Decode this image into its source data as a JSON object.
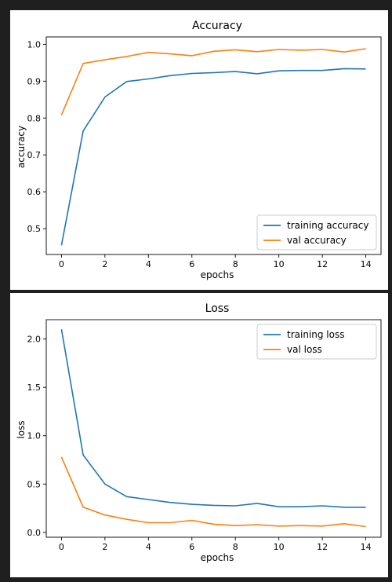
{
  "chart_data": [
    {
      "type": "line",
      "title": "Accuracy",
      "xlabel": "epochs",
      "ylabel": "accuracy",
      "xlim": [
        -0.7,
        14.7
      ],
      "ylim": [
        0.43,
        1.02
      ],
      "xticks": [
        0,
        2,
        4,
        6,
        8,
        10,
        12,
        14
      ],
      "yticks": [
        0.5,
        0.6,
        0.7,
        0.8,
        0.9,
        1.0
      ],
      "ytick_labels": [
        "0.5",
        "0.6",
        "0.7",
        "0.8",
        "0.9",
        "1.0"
      ],
      "legend_placement": "lower-right",
      "grid": false,
      "x": [
        0,
        1,
        2,
        3,
        4,
        5,
        6,
        7,
        8,
        9,
        10,
        11,
        12,
        13,
        14
      ],
      "series": [
        {
          "name": "training accuracy",
          "color": "#1f77b4",
          "values": [
            0.455,
            0.765,
            0.857,
            0.899,
            0.906,
            0.915,
            0.921,
            0.923,
            0.926,
            0.92,
            0.928,
            0.929,
            0.929,
            0.934,
            0.933
          ]
        },
        {
          "name": "val accuracy",
          "color": "#ff7f0e",
          "values": [
            0.808,
            0.948,
            0.958,
            0.967,
            0.978,
            0.974,
            0.969,
            0.981,
            0.985,
            0.98,
            0.986,
            0.984,
            0.986,
            0.979,
            0.988
          ]
        }
      ]
    },
    {
      "type": "line",
      "title": "Loss",
      "xlabel": "epochs",
      "ylabel": "loss",
      "xlim": [
        -0.7,
        14.7
      ],
      "ylim": [
        -0.05,
        2.2
      ],
      "xticks": [
        0,
        2,
        4,
        6,
        8,
        10,
        12,
        14
      ],
      "yticks": [
        0.0,
        0.5,
        1.0,
        1.5,
        2.0
      ],
      "ytick_labels": [
        "0.0",
        "0.5",
        "1.0",
        "1.5",
        "2.0"
      ],
      "legend_placement": "upper-right",
      "grid": false,
      "x": [
        0,
        1,
        2,
        3,
        4,
        5,
        6,
        7,
        8,
        9,
        10,
        11,
        12,
        13,
        14
      ],
      "series": [
        {
          "name": "training loss",
          "color": "#1f77b4",
          "values": [
            2.1,
            0.8,
            0.5,
            0.37,
            0.34,
            0.31,
            0.29,
            0.28,
            0.275,
            0.3,
            0.265,
            0.265,
            0.275,
            0.26,
            0.26
          ]
        },
        {
          "name": "val loss",
          "color": "#ff7f0e",
          "values": [
            0.78,
            0.26,
            0.18,
            0.135,
            0.1,
            0.1,
            0.125,
            0.085,
            0.07,
            0.08,
            0.065,
            0.07,
            0.065,
            0.09,
            0.06
          ]
        }
      ]
    }
  ]
}
